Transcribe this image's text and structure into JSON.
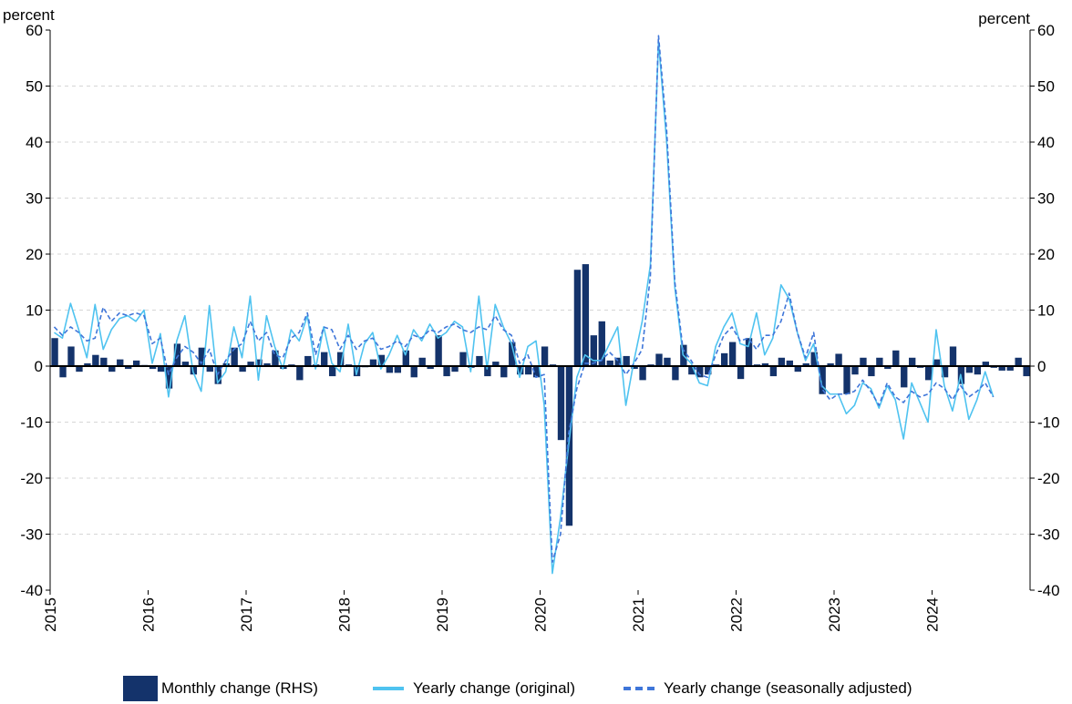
{
  "chart_data": {
    "type": "bar+line",
    "left_axis_unit": "percent",
    "right_axis_unit": "percent",
    "ylim_left": [
      -40,
      60
    ],
    "ylim_right": [
      -40,
      60
    ],
    "y_ticks": [
      "60",
      "50",
      "40",
      "30",
      "20",
      "10",
      "0",
      "-10",
      "-20",
      "-30",
      "-40"
    ],
    "x_ticks": [
      "2015",
      "2016",
      "2017",
      "2018",
      "2019",
      "2020",
      "2021",
      "2022",
      "2023",
      "2024"
    ],
    "x_start": "2015-01",
    "grid": "horizontal dashed",
    "legend_position": "bottom",
    "colors": {
      "bars": "#14336b",
      "original": "#4fc3f0",
      "seasonally_adjusted": "#3f76d9"
    },
    "series": [
      {
        "name": "Monthly change (RHS)",
        "type": "bar",
        "axis": "right",
        "values": [
          5.0,
          -2.0,
          3.5,
          -1.0,
          0.5,
          2.0,
          1.5,
          -1.0,
          1.2,
          -0.5,
          1.0,
          0.2,
          -0.5,
          -1.0,
          -4.0,
          4.0,
          0.8,
          -1.5,
          3.3,
          -1.0,
          -3.2,
          0.5,
          3.3,
          -1.0,
          0.8,
          1.2,
          0.5,
          2.8,
          -0.5,
          0.3,
          -2.5,
          1.8,
          0.3,
          2.5,
          -1.8,
          2.5,
          0.3,
          -1.8,
          -0.2,
          1.2,
          2.0,
          -1.2,
          -1.2,
          2.8,
          -2.0,
          1.5,
          -0.5,
          5.5,
          -1.8,
          -1.0,
          2.5,
          -0.3,
          1.8,
          -1.8,
          0.8,
          -2.0,
          4.3,
          -1.5,
          -1.5,
          -2.0,
          3.5,
          0.3,
          -13.2,
          -28.5,
          17.2,
          18.2,
          5.5,
          8.0,
          1.0,
          1.5,
          1.8,
          -0.5,
          -2.5,
          0.3,
          2.2,
          1.5,
          -2.5,
          3.8,
          -1.5,
          -2.0,
          -1.5,
          0.3,
          2.3,
          4.3,
          -2.3,
          5.0,
          0.3,
          0.5,
          -1.8,
          1.5,
          1.0,
          -1.0,
          0.5,
          2.5,
          -5.0,
          0.5,
          2.2,
          -5.0,
          -1.5,
          1.5,
          -1.8,
          1.5,
          -0.5,
          2.8,
          -3.8,
          1.5,
          -0.3,
          -2.5,
          1.2,
          -2.0,
          3.5,
          -3.2,
          -1.2,
          -1.5,
          0.8,
          -0.3,
          -0.8,
          -0.8,
          1.5,
          -1.8
        ]
      },
      {
        "name": "Yearly change (original)",
        "type": "line",
        "axis": "left",
        "values": [
          6.0,
          5.0,
          11.2,
          6.5,
          1.5,
          11.0,
          3.0,
          6.5,
          8.5,
          9.0,
          8.0,
          10.0,
          0.5,
          5.8,
          -5.5,
          4.5,
          9.0,
          -1.0,
          -4.5,
          10.8,
          -3.0,
          -1.0,
          7.0,
          1.5,
          12.5,
          -2.5,
          9.0,
          3.5,
          -0.5,
          6.5,
          4.5,
          9.0,
          -0.5,
          7.0,
          0.5,
          -1.0,
          7.5,
          -1.5,
          4.0,
          6.0,
          -0.5,
          2.0,
          5.5,
          2.0,
          6.5,
          4.5,
          7.5,
          5.0,
          6.0,
          8.0,
          7.0,
          -1.0,
          12.5,
          -0.5,
          11.0,
          7.0,
          4.0,
          -2.0,
          3.5,
          4.5,
          -7.0,
          -37.0,
          -27.0,
          -14.0,
          -2.0,
          2.0,
          1.0,
          1.0,
          4.0,
          7.0,
          -7.0,
          1.0,
          8.0,
          18.0,
          58.0,
          40.0,
          14.0,
          2.0,
          0.5,
          -3.0,
          -3.5,
          3.5,
          7.0,
          9.5,
          4.0,
          3.5,
          9.5,
          2.0,
          5.0,
          14.5,
          12.0,
          6.0,
          1.0,
          4.0,
          -3.5,
          -5.0,
          -5.0,
          -8.5,
          -7.0,
          -3.0,
          -4.0,
          -7.5,
          -3.5,
          -6.0,
          -13.0,
          -3.0,
          -6.5,
          -10.0,
          6.5,
          -3.5,
          -8.0,
          -1.5,
          -9.5,
          -6.0,
          -1.0,
          -5.5
        ]
      },
      {
        "name": "Yearly change (seasonally adjusted)",
        "type": "line",
        "axis": "left",
        "values": [
          7.0,
          5.5,
          7.0,
          6.0,
          4.5,
          5.0,
          10.5,
          8.0,
          9.5,
          9.0,
          9.5,
          9.0,
          4.0,
          5.0,
          -1.5,
          1.5,
          3.5,
          2.5,
          0.5,
          3.0,
          -1.5,
          1.0,
          3.0,
          4.0,
          8.0,
          4.5,
          6.0,
          2.0,
          1.5,
          5.0,
          6.0,
          9.5,
          2.0,
          7.0,
          6.5,
          3.0,
          5.5,
          3.0,
          4.5,
          5.0,
          3.0,
          3.5,
          4.5,
          3.5,
          5.5,
          5.0,
          6.5,
          6.0,
          7.0,
          7.5,
          6.5,
          6.0,
          7.0,
          6.5,
          9.0,
          6.5,
          5.5,
          0.5,
          2.0,
          -2.0,
          -1.5,
          -35.0,
          -30.0,
          -12.0,
          -4.0,
          0.5,
          0.5,
          1.0,
          2.5,
          1.0,
          -1.5,
          0.5,
          3.0,
          16.0,
          59.0,
          42.0,
          15.0,
          3.0,
          1.0,
          -1.5,
          -2.0,
          2.0,
          5.5,
          7.0,
          4.5,
          5.0,
          3.0,
          5.5,
          5.5,
          8.0,
          13.0,
          6.0,
          1.5,
          6.0,
          -4.0,
          -6.0,
          -5.0,
          -5.0,
          -4.5,
          -2.5,
          -4.5,
          -7.0,
          -3.0,
          -5.5,
          -6.5,
          -4.5,
          -5.5,
          -5.0,
          -3.0,
          -4.0,
          -6.0,
          -3.5,
          -5.5,
          -4.5,
          -3.0,
          -5.5
        ]
      }
    ]
  },
  "legend": {
    "bars": "Monthly change (RHS)",
    "original": "Yearly change (original)",
    "sa": "Yearly change (seasonally adjusted)"
  }
}
